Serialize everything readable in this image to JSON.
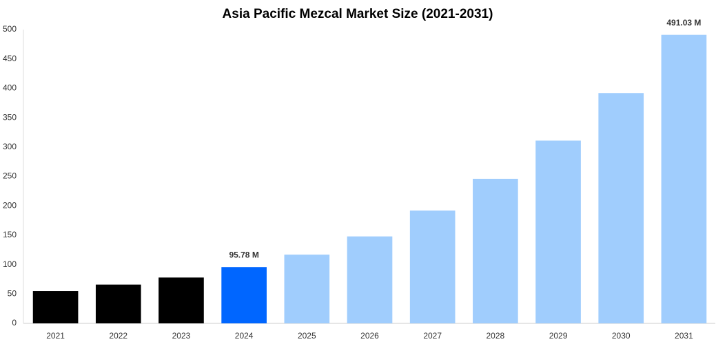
{
  "chart_data": {
    "type": "bar",
    "title": "Asia Pacific Mezcal Market Size (2021-2031)",
    "categories": [
      "2021",
      "2022",
      "2023",
      "2024",
      "2025",
      "2026",
      "2027",
      "2028",
      "2029",
      "2030",
      "2031"
    ],
    "values": [
      55,
      66,
      78,
      95.78,
      117,
      148,
      192,
      246,
      311,
      392,
      491.03
    ],
    "value_labels": [
      null,
      null,
      null,
      "95.78 M",
      null,
      null,
      null,
      null,
      null,
      null,
      "491.03 M"
    ],
    "colors": [
      "#000000",
      "#000000",
      "#000000",
      "#0066ff",
      "#a0cdfd",
      "#a0cdfd",
      "#a0cdfd",
      "#a0cdfd",
      "#a0cdfd",
      "#a0cdfd",
      "#a0cdfd"
    ],
    "ylim": [
      0,
      500
    ],
    "yticks": [
      0,
      50,
      100,
      150,
      200,
      250,
      300,
      350,
      400,
      450,
      500
    ],
    "grid": false
  }
}
